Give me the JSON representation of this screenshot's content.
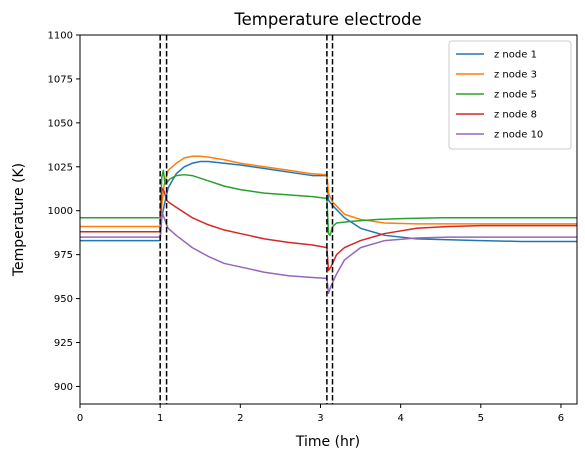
{
  "chart_data": {
    "type": "line",
    "title": "Temperature electrode",
    "xlabel": "Time (hr)",
    "ylabel": "Temperature (K)",
    "xlim": [
      0,
      6.2
    ],
    "ylim": [
      890,
      1100
    ],
    "xticks": [
      0,
      1,
      2,
      3,
      4,
      5,
      6
    ],
    "yticks": [
      900,
      925,
      950,
      975,
      1000,
      1025,
      1050,
      1075,
      1100
    ],
    "grid": false,
    "legend_position": "top-right",
    "vlines": [
      1.0,
      1.08,
      3.08,
      3.15
    ],
    "vline_style": "dashed black",
    "series": [
      {
        "name": "z node 1",
        "color": "#1f77b4",
        "x": [
          0,
          1.0,
          1.02,
          1.05,
          1.1,
          1.2,
          1.3,
          1.4,
          1.5,
          1.6,
          1.8,
          2.0,
          2.3,
          2.6,
          2.9,
          3.08,
          3.1,
          3.15,
          3.3,
          3.5,
          3.8,
          4.2,
          4.6,
          5.0,
          5.5,
          6.2
        ],
        "y": [
          983,
          983,
          996,
          1003,
          1013,
          1021,
          1025,
          1027,
          1028,
          1028,
          1027,
          1026,
          1024,
          1022,
          1020,
          1020,
          1006,
          1003,
          996,
          990,
          986,
          984,
          983.5,
          983,
          982.5,
          982.5
        ]
      },
      {
        "name": "z node 3",
        "color": "#ff7f0e",
        "x": [
          0,
          1.0,
          1.02,
          1.05,
          1.1,
          1.2,
          1.3,
          1.4,
          1.5,
          1.6,
          1.8,
          2.0,
          2.3,
          2.6,
          2.9,
          3.08,
          3.1,
          3.15,
          3.3,
          3.5,
          3.8,
          4.2,
          4.6,
          5.0,
          5.5,
          6.2
        ],
        "y": [
          991,
          991,
          1003,
          1015,
          1023,
          1027,
          1030,
          1031,
          1031,
          1030.5,
          1029,
          1027,
          1025,
          1023,
          1021,
          1020.5,
          1010,
          1005,
          998,
          995,
          993,
          992.5,
          992.5,
          992.5,
          992.5,
          992.5
        ]
      },
      {
        "name": "z node 5",
        "color": "#2ca02c",
        "x": [
          0,
          1.0,
          1.02,
          1.04,
          1.06,
          1.08,
          1.12,
          1.2,
          1.3,
          1.4,
          1.6,
          1.8,
          2.0,
          2.3,
          2.6,
          2.9,
          3.08,
          3.1,
          3.12,
          3.15,
          3.2,
          3.4,
          3.7,
          4.0,
          4.5,
          5.0,
          5.5,
          6.2
        ],
        "y": [
          996,
          996,
          1019,
          1023,
          1015,
          1016,
          1018,
          1020,
          1020.5,
          1020,
          1017,
          1014,
          1012,
          1010,
          1009,
          1008,
          1007,
          987,
          986,
          991,
          993,
          994,
          995,
          995.5,
          996,
          996,
          996,
          996
        ]
      },
      {
        "name": "z node 8",
        "color": "#d62728",
        "x": [
          0,
          1.0,
          1.02,
          1.05,
          1.08,
          1.1,
          1.2,
          1.4,
          1.6,
          1.8,
          2.0,
          2.3,
          2.6,
          2.9,
          3.08,
          3.1,
          3.13,
          3.2,
          3.3,
          3.5,
          3.8,
          4.2,
          4.6,
          5.0,
          5.5,
          6.2
        ],
        "y": [
          988,
          988,
          1013,
          1011,
          1006,
          1005,
          1002,
          996,
          992,
          989,
          987,
          984,
          982,
          980.5,
          979,
          966,
          968,
          975,
          979,
          983,
          987,
          990,
          991,
          991.5,
          991.5,
          991.5
        ]
      },
      {
        "name": "z node 10",
        "color": "#9467bd",
        "x": [
          0,
          1.0,
          1.02,
          1.05,
          1.08,
          1.1,
          1.2,
          1.4,
          1.6,
          1.8,
          2.0,
          2.3,
          2.6,
          2.9,
          3.08,
          3.1,
          3.13,
          3.2,
          3.3,
          3.5,
          3.8,
          4.2,
          4.6,
          5.0,
          5.5,
          6.2
        ],
        "y": [
          985,
          985,
          999,
          996,
          992,
          990,
          986,
          979,
          974,
          970,
          968,
          965,
          963,
          962,
          961.5,
          953,
          957,
          964,
          972,
          979,
          983,
          984.5,
          985,
          985,
          985,
          985
        ]
      }
    ]
  }
}
